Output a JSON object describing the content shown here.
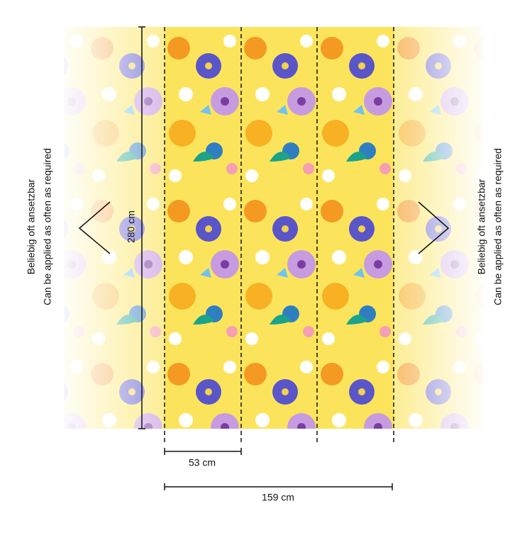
{
  "dimensions": {
    "height": "280 cm",
    "panel_width": "53 cm",
    "total_width": "159 cm"
  },
  "left_note": {
    "line1": "Beliebig oft ansetzbar",
    "line2": "Can be applied as often as required"
  },
  "right_note": {
    "line1": "Beliebig oft ansetzbar",
    "line2": "Can be applied as often as required"
  }
}
